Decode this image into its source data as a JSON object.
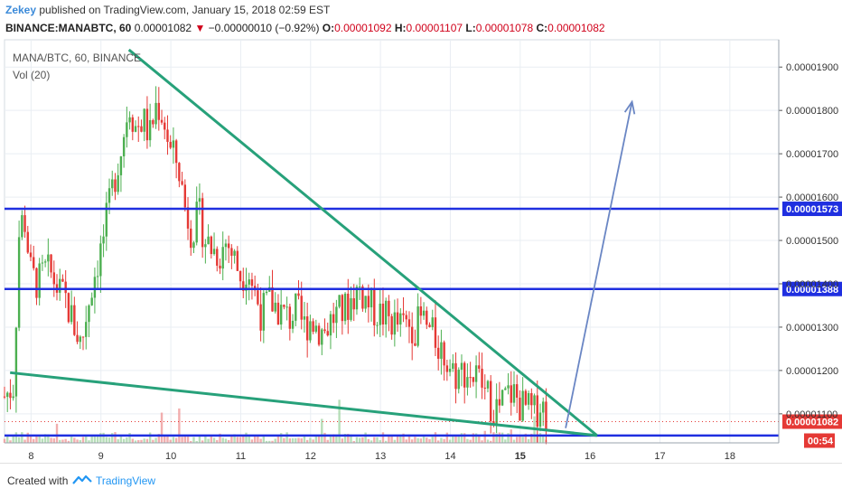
{
  "header": {
    "user": "Zekey",
    "published": "published on TradingView.com, January 15, 2018 02:59 EST",
    "symbol": "BINANCE:MANABTC, 60",
    "last": "0.00001082",
    "arrow": "▼",
    "change": "−0.00000010 (−0.92%)",
    "o_label": "O:",
    "o_value": "0.00001092",
    "h_label": "H:",
    "h_value": "0.00001107",
    "l_label": "L:",
    "l_value": "0.00001078",
    "c_label": "C:",
    "c_value": "0.00001082"
  },
  "legend": {
    "title": "MANA/BTC, 60, BINANCE",
    "volume": "Vol (20)"
  },
  "footer": {
    "created": "Created with",
    "brand": "TradingView"
  },
  "chart_data": {
    "type": "candlestick",
    "title": "MANA/BTC, 60, BINANCE",
    "x_ticks": [
      "8",
      "9",
      "10",
      "11",
      "12",
      "13",
      "14",
      "15",
      "16",
      "17",
      "18"
    ],
    "x_range": [
      7.62,
      18.7
    ],
    "y_ticks": [
      "0.00001100",
      "0.00001200",
      "0.00001300",
      "0.00001400",
      "0.00001500",
      "0.00001600",
      "0.00001700",
      "0.00001800",
      "0.00001900"
    ],
    "y_tick_values": [
      1.1e-05,
      1.2e-05,
      1.3e-05,
      1.4e-05,
      1.5e-05,
      1.6e-05,
      1.7e-05,
      1.8e-05,
      1.9e-05
    ],
    "y_range": [
      1.033e-05,
      1.963e-05
    ],
    "horizontal_levels": [
      {
        "value": 1.573e-05,
        "label": "0.00001573",
        "color": "#1f2fe0"
      },
      {
        "value": 1.388e-05,
        "label": "0.00001388",
        "color": "#1f2fe0"
      },
      {
        "value": 1.05e-05,
        "label": "",
        "color": "#1f2fe0"
      }
    ],
    "last_price": {
      "value": 1.082e-05,
      "label": "0.00001082",
      "countdown": "00:54"
    },
    "trendlines": [
      {
        "from": [
          9.4,
          1.94e-05
        ],
        "to": [
          16.1,
          1.05e-05
        ],
        "color": "#27a17a"
      },
      {
        "from": [
          7.7,
          1.195e-05
        ],
        "to": [
          16.1,
          1.05e-05
        ],
        "color": "#27a17a"
      }
    ],
    "projection_arrow": {
      "from": [
        15.65,
        1.067e-05
      ],
      "to": [
        16.6,
        1.82e-05
      ],
      "color": "#6a86c4"
    },
    "price_path": [
      [
        7.62,
        1.14e-05
      ],
      [
        7.75,
        1.165e-05
      ],
      [
        7.83,
        1.52e-05
      ],
      [
        7.9,
        1.56e-05
      ],
      [
        8.0,
        1.42e-05
      ],
      [
        8.1,
        1.4e-05
      ],
      [
        8.2,
        1.43e-05
      ],
      [
        8.3,
        1.42e-05
      ],
      [
        8.4,
        1.38e-05
      ],
      [
        8.5,
        1.36e-05
      ],
      [
        8.6,
        1.31e-05
      ],
      [
        8.72,
        1.26e-05
      ],
      [
        8.8,
        1.34e-05
      ],
      [
        8.9,
        1.42e-05
      ],
      [
        9.0,
        1.48e-05
      ],
      [
        9.1,
        1.56e-05
      ],
      [
        9.2,
        1.65e-05
      ],
      [
        9.3,
        1.72e-05
      ],
      [
        9.4,
        1.82e-05
      ],
      [
        9.5,
        1.76e-05
      ],
      [
        9.6,
        1.78e-05
      ],
      [
        9.7,
        1.74e-05
      ],
      [
        9.8,
        1.82e-05
      ],
      [
        9.9,
        1.78e-05
      ],
      [
        10.0,
        1.7e-05
      ],
      [
        10.1,
        1.68e-05
      ],
      [
        10.2,
        1.58e-05
      ],
      [
        10.3,
        1.52e-05
      ],
      [
        10.4,
        1.56e-05
      ],
      [
        10.5,
        1.5e-05
      ],
      [
        10.6,
        1.48e-05
      ],
      [
        10.7,
        1.47e-05
      ],
      [
        10.8,
        1.5e-05
      ],
      [
        10.9,
        1.46e-05
      ],
      [
        11.0,
        1.42e-05
      ],
      [
        11.1,
        1.44e-05
      ],
      [
        11.2,
        1.38e-05
      ],
      [
        11.3,
        1.33e-05
      ],
      [
        11.4,
        1.36e-05
      ],
      [
        11.5,
        1.35e-05
      ],
      [
        11.6,
        1.33e-05
      ],
      [
        11.7,
        1.32e-05
      ],
      [
        11.8,
        1.34e-05
      ],
      [
        11.9,
        1.3e-05
      ],
      [
        12.0,
        1.32e-05
      ],
      [
        12.1,
        1.3e-05
      ],
      [
        12.2,
        1.29e-05
      ],
      [
        12.3,
        1.32e-05
      ],
      [
        12.4,
        1.33e-05
      ],
      [
        12.5,
        1.34e-05
      ],
      [
        12.6,
        1.37e-05
      ],
      [
        12.7,
        1.39e-05
      ],
      [
        12.8,
        1.36e-05
      ],
      [
        12.9,
        1.34e-05
      ],
      [
        13.0,
        1.33e-05
      ],
      [
        13.1,
        1.32e-05
      ],
      [
        13.2,
        1.31e-05
      ],
      [
        13.3,
        1.3e-05
      ],
      [
        13.4,
        1.31e-05
      ],
      [
        13.5,
        1.3e-05
      ],
      [
        13.6,
        1.32e-05
      ],
      [
        13.7,
        1.29e-05
      ],
      [
        13.8,
        1.27e-05
      ],
      [
        13.9,
        1.24e-05
      ],
      [
        14.0,
        1.21e-05
      ],
      [
        14.1,
        1.19e-05
      ],
      [
        14.2,
        1.2e-05
      ],
      [
        14.3,
        1.19e-05
      ],
      [
        14.4,
        1.18e-05
      ],
      [
        14.5,
        1.15e-05
      ],
      [
        14.6,
        1.12e-05
      ],
      [
        14.7,
        1.11e-05
      ],
      [
        14.8,
        1.14e-05
      ],
      [
        14.9,
        1.15e-05
      ],
      [
        15.0,
        1.12e-05
      ],
      [
        15.1,
        1.11e-05
      ],
      [
        15.2,
        1.1e-05
      ],
      [
        15.3,
        1.13e-05
      ],
      [
        15.4,
        1.082e-05
      ]
    ],
    "grid": true,
    "colors": {
      "up": "#4caf50",
      "down": "#e53935",
      "grid": "#e9eef3",
      "level": "#1f2fe0",
      "badge": "#e53935"
    }
  }
}
